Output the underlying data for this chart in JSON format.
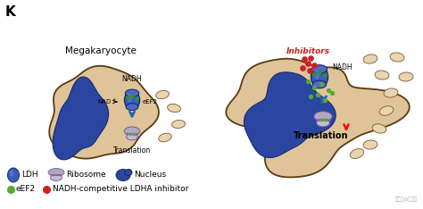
{
  "panel_label": "K",
  "bg_color": "#ffffff",
  "cell_color": "#dfc49a",
  "cell_edge": "#5a3a10",
  "nucleus_color": "#2a46a0",
  "nucleus_edge": "#1a2870",
  "ldh_body_color": "#3a5cb8",
  "ldh_edge_color": "#1a2a70",
  "ldh_green_color": "#3a8a3a",
  "ribosome_top_color": "#b0aac0",
  "ribosome_bot_color": "#c8b8d8",
  "ribosome_edge": "#7060a0",
  "ribosome_line": "#9060b0",
  "arrow_blue": "#2a60b0",
  "arrow_red": "#cc2020",
  "inhibitor_red": "#cc2020",
  "eef2_green": "#55aa33",
  "nadh_text": "black",
  "nad_text": "black",
  "eef2_text": "black",
  "translation_text": "black",
  "inhibitors_text_color": "#cc2020",
  "platelet_color": "#e8d4b0",
  "platelet_edge": "#7a5a30",
  "left_cell_label": "Megakaryocyte",
  "legend_ldh": "LDH",
  "legend_ribosome": "Ribosome",
  "legend_nucleus": "Nucleus",
  "legend_eef2": "eEF2",
  "legend_inhibitor": "NADH-competitive LDHA inhibitor",
  "watermark": "搜狐号@基因圈"
}
